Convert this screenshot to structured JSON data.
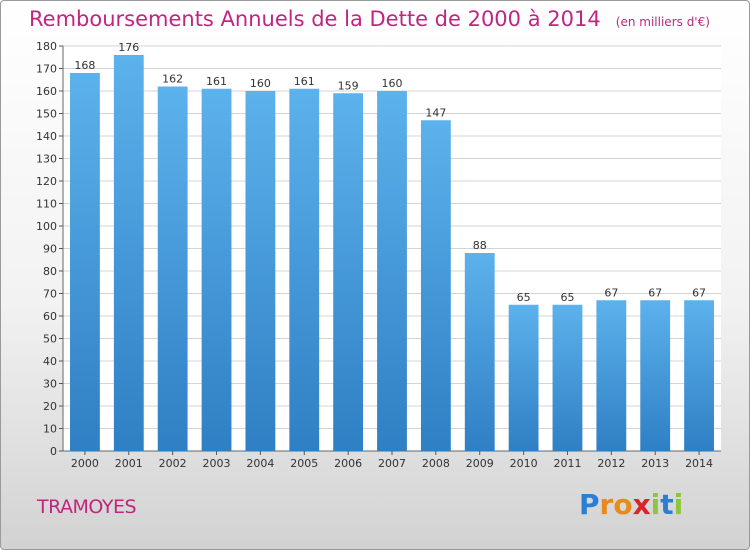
{
  "title": "Remboursements Annuels de la Dette de 2000 à 2014",
  "unit": "(en milliers d'€)",
  "commune": "TRAMOYES",
  "logo": {
    "letters": [
      "P",
      "r",
      "o",
      "x",
      "i",
      "t",
      "i"
    ],
    "colors": [
      "#2a7fd0",
      "#e88a1a",
      "#e88a1a",
      "#d6262b",
      "#8cc63f",
      "#2a7fd0",
      "#8cc63f"
    ]
  },
  "colors": {
    "bar_light": "#5cb2ec",
    "bar_dark": "#2f7fc4",
    "accent": "#c0267f"
  },
  "chart_data": {
    "type": "bar",
    "categories": [
      "2000",
      "2001",
      "2002",
      "2003",
      "2004",
      "2005",
      "2006",
      "2007",
      "2008",
      "2009",
      "2010",
      "2011",
      "2012",
      "2013",
      "2014"
    ],
    "values": [
      168,
      176,
      162,
      161,
      160,
      161,
      159,
      160,
      147,
      88,
      65,
      65,
      67,
      67,
      67
    ],
    "ylim": [
      0,
      180
    ],
    "yticks": [
      0,
      10,
      20,
      30,
      40,
      50,
      60,
      70,
      80,
      90,
      100,
      110,
      120,
      130,
      140,
      150,
      160,
      170,
      180
    ],
    "grid": true,
    "title": "Remboursements Annuels de la Dette de 2000 à 2014",
    "xlabel": "",
    "ylabel": ""
  }
}
